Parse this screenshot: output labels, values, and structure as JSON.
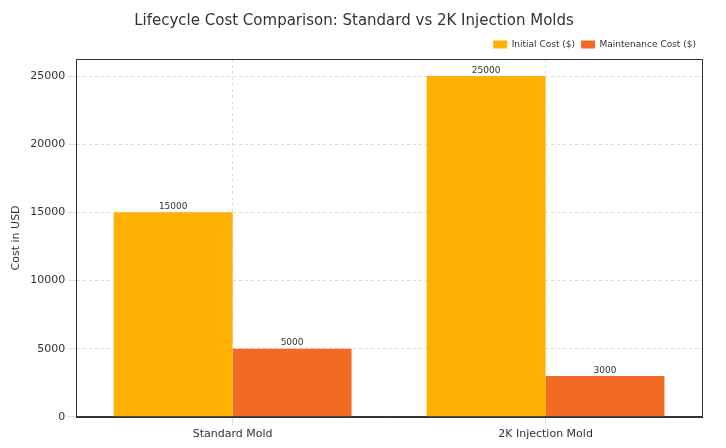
{
  "chart_data": {
    "type": "bar",
    "title": "Lifecycle Cost Comparison: Standard vs 2K Injection Molds",
    "y_label": "Cost in USD",
    "categories": [
      "Standard Mold",
      "2K Injection Mold"
    ],
    "series": [
      {
        "name": "Initial Cost ($)",
        "color": "#ffb000",
        "values": [
          15000,
          25000
        ]
      },
      {
        "name": "Maintenance Cost ($)",
        "color": "#f26b22",
        "values": [
          5000,
          3000
        ]
      }
    ],
    "ylim": [
      0,
      26250
    ],
    "yticks": [
      0,
      5000,
      10000,
      15000,
      20000,
      25000
    ],
    "grid": true,
    "legend": "upper right",
    "data_labels": true
  }
}
